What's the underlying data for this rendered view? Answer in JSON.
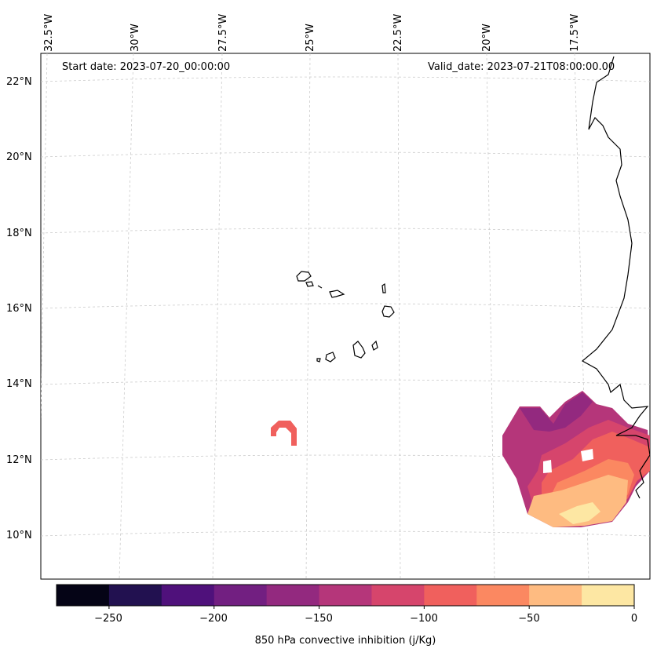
{
  "map": {
    "start_date": "Start date: 2023-07-20_00:00:00",
    "valid_date": "Valid_date: 2023-07-21T08:00:00.00",
    "lon_labels": [
      "32.5°W",
      "30°W",
      "27.5°W",
      "25°W",
      "22.5°W",
      "20°W",
      "17.5°W"
    ],
    "lat_labels": [
      "22°N",
      "20°N",
      "18°N",
      "16°N",
      "14°N",
      "12°N",
      "10°N"
    ]
  },
  "colorbar": {
    "label": "850 hPa convective inhibition (j/Kg)",
    "tick_labels": [
      "−250",
      "−200",
      "−150",
      "−100",
      "−50",
      "0"
    ],
    "colors": [
      "#050416",
      "#221150",
      "#4f117b",
      "#721f81",
      "#93297f",
      "#b5367a",
      "#d6456c",
      "#f0605d",
      "#fb8861",
      "#febb81",
      "#fde7a3"
    ],
    "range": [
      -275,
      0
    ]
  }
}
